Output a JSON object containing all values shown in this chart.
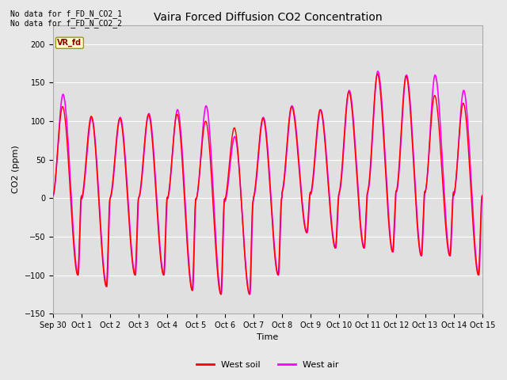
{
  "title": "Vaira Forced Diffusion CO2 Concentration",
  "xlabel": "Time",
  "ylabel": "CO2 (ppm)",
  "ylim": [
    -150,
    225
  ],
  "yticks": [
    -150,
    -100,
    -50,
    0,
    50,
    100,
    150,
    200
  ],
  "background_color": "#e8e8e8",
  "plot_bg_color": "#e0e0e0",
  "no_data_text1": "No data for f_FD_N_CO2_1",
  "no_data_text2": "No data for f_FD_N_CO2_2",
  "vr_fd_label": "VR_fd",
  "legend_entries": [
    "West soil",
    "West air"
  ],
  "line_color_soil": "#ff0000",
  "line_color_air": "#ff00ff",
  "xtick_labels": [
    "Sep 30",
    "Oct 1",
    "Oct 2",
    "Oct 3",
    "Oct 4",
    "Oct 5",
    "Oct 6",
    "Oct 7",
    "Oct 8",
    "Oct 9",
    "Oct 10",
    "Oct 11",
    "Oct 12",
    "Oct 13",
    "Oct 14",
    "Oct 15"
  ],
  "grid_color": "#ffffff",
  "spine_color": "#aaaaaa"
}
